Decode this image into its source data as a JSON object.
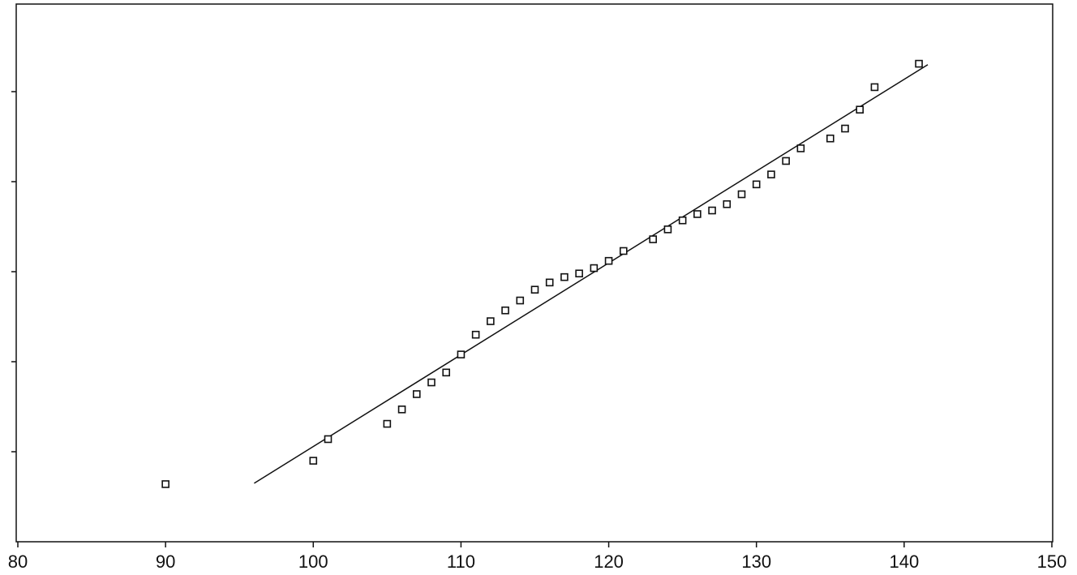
{
  "chart_data": {
    "type": "scatter",
    "x": [
      90,
      100,
      101,
      105,
      106,
      107,
      108,
      109,
      110,
      111,
      112,
      113,
      114,
      115,
      116,
      117,
      118,
      119,
      120,
      121,
      123,
      124,
      125,
      126,
      127,
      128,
      129,
      130,
      131,
      132,
      133,
      135,
      136,
      137,
      138,
      141
    ],
    "values": [
      0.64,
      0.9,
      1.14,
      1.31,
      1.47,
      1.64,
      1.77,
      1.88,
      2.08,
      2.3,
      2.45,
      2.57,
      2.68,
      2.8,
      2.88,
      2.94,
      2.98,
      3.04,
      3.12,
      3.23,
      3.36,
      3.47,
      3.57,
      3.64,
      3.68,
      3.75,
      3.86,
      3.97,
      4.08,
      4.23,
      4.37,
      4.48,
      4.59,
      4.8,
      5.05,
      5.31
    ],
    "color": "#111111",
    "fit_line": {
      "x": [
        96,
        141.6
      ],
      "values": [
        0.65,
        5.3
      ]
    },
    "xlim": [
      80,
      150
    ],
    "xticks": [
      80,
      90,
      100,
      110,
      120,
      130,
      140,
      150
    ],
    "ylim": [
      0,
      6
    ],
    "yticks": [
      1,
      2,
      3,
      4,
      5
    ]
  }
}
